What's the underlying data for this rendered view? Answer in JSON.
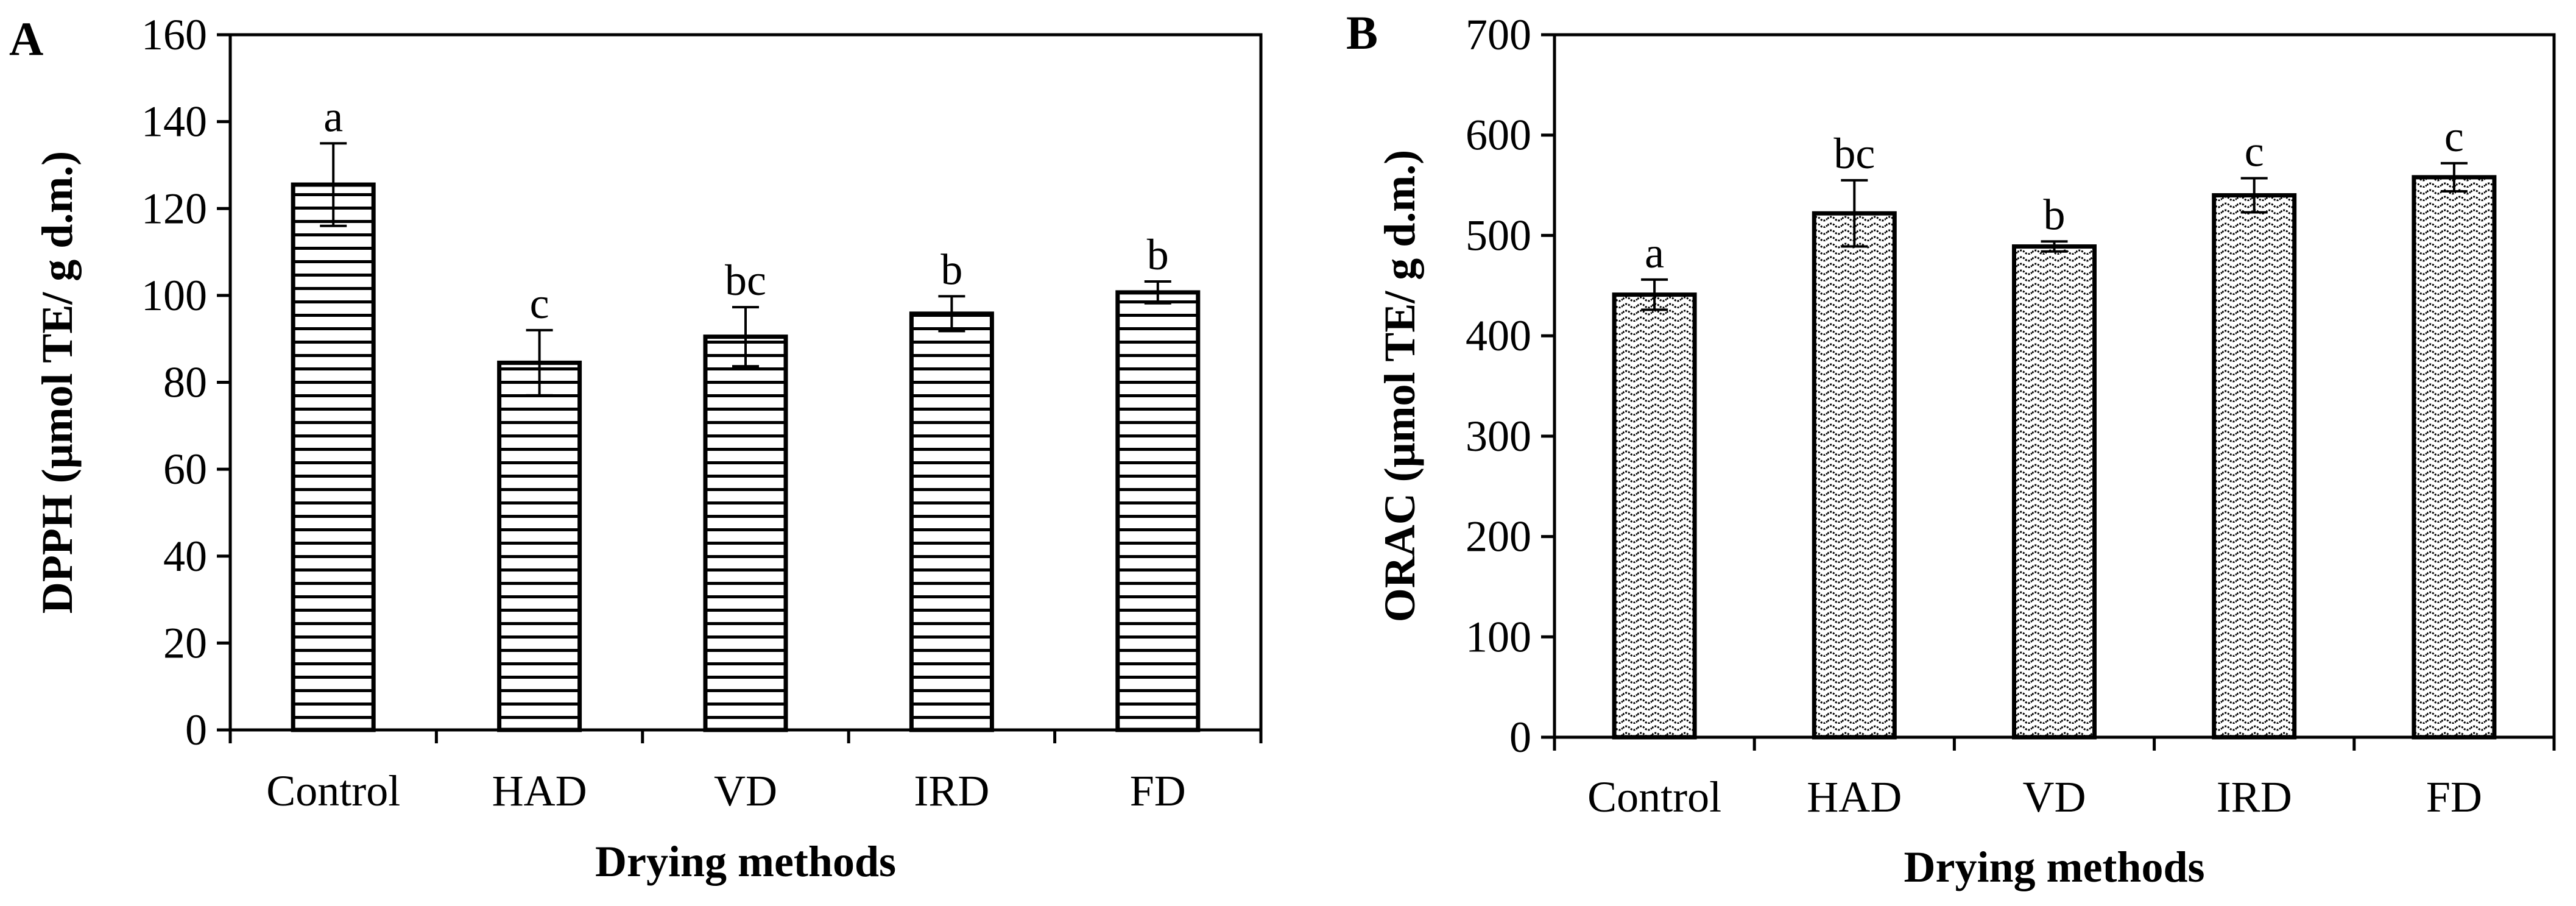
{
  "chart_data": [
    {
      "type": "bar",
      "panel": "A",
      "categories": [
        "Control",
        "HAD",
        "VD",
        "IRD",
        "FD"
      ],
      "values": [
        125.5,
        84.5,
        90.5,
        95.8,
        100.7
      ],
      "errors": [
        9.5,
        7.5,
        6.8,
        4.0,
        2.5
      ],
      "significance": [
        "a",
        "c",
        "bc",
        "b",
        "b"
      ],
      "ylabel": "DPPH (μmol TE/ g d.m.)",
      "xlabel": "Drying methods",
      "ylim": [
        0,
        160
      ],
      "yticks": [
        0,
        20,
        40,
        60,
        80,
        100,
        120,
        140,
        160
      ],
      "pattern": "horizontal-stripes",
      "grid": false
    },
    {
      "type": "bar",
      "panel": "B",
      "categories": [
        "Control",
        "HAD",
        "VD",
        "IRD",
        "FD"
      ],
      "values": [
        441,
        522,
        489,
        540,
        558
      ],
      "errors": [
        15,
        33,
        5,
        17,
        14
      ],
      "significance": [
        "a",
        "bc",
        "b",
        "c",
        "c"
      ],
      "ylabel": "ORAC (μmol TE/ g d.m.)",
      "xlabel": "Drying methods",
      "ylim": [
        0,
        700
      ],
      "yticks": [
        0,
        100,
        200,
        300,
        400,
        500,
        600,
        700
      ],
      "pattern": "wavy-dots",
      "grid": false
    }
  ]
}
